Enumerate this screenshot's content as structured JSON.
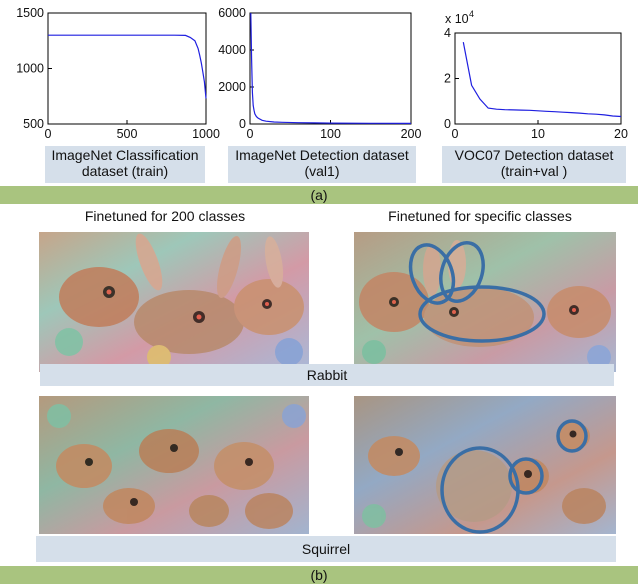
{
  "chart_data": [
    {
      "type": "line",
      "caption": "ImageNet Classification dataset (train)",
      "xlim": [
        0,
        1000
      ],
      "ylim": [
        500,
        1500
      ],
      "xticks": [
        "0",
        "500",
        "1000"
      ],
      "yticks": [
        "500",
        "1000",
        "1500"
      ],
      "x": [
        0,
        50,
        100,
        200,
        300,
        400,
        500,
        600,
        700,
        800,
        870,
        900,
        930,
        950,
        960,
        970,
        980,
        990,
        1000
      ],
      "y": [
        1300,
        1300,
        1300,
        1300,
        1300,
        1300,
        1300,
        1300,
        1300,
        1300,
        1298,
        1280,
        1250,
        1180,
        1120,
        1050,
        970,
        880,
        730
      ],
      "color": "#1f1fe0"
    },
    {
      "type": "line",
      "caption": "ImageNet Detection dataset (val1)",
      "xlim": [
        0,
        200
      ],
      "ylim": [
        0,
        6000
      ],
      "xticks": [
        "0",
        "100",
        "200"
      ],
      "yticks": [
        "0",
        "2000",
        "4000",
        "6000"
      ],
      "x": [
        1,
        2,
        3,
        4,
        5,
        6,
        8,
        10,
        15,
        20,
        30,
        40,
        60,
        80,
        100,
        150,
        200
      ],
      "y": [
        6000,
        3500,
        1700,
        1000,
        750,
        550,
        400,
        320,
        200,
        150,
        110,
        90,
        70,
        60,
        50,
        40,
        30
      ],
      "color": "#1f1fe0"
    },
    {
      "type": "line",
      "caption": "VOC07 Detection dataset (train+val )",
      "xlim": [
        0,
        20
      ],
      "ylim": [
        0,
        40000
      ],
      "xticks": [
        "0",
        "10",
        "20"
      ],
      "yticks": [
        "0",
        "2",
        "4"
      ],
      "y_multiplier": "x 10",
      "y_exponent": "4",
      "x": [
        1,
        2,
        3,
        4,
        5,
        6,
        7,
        8,
        9,
        10,
        11,
        12,
        13,
        14,
        15,
        16,
        17,
        18,
        19,
        20
      ],
      "y": [
        36000,
        17000,
        11000,
        7000,
        6500,
        6300,
        6200,
        6100,
        6000,
        5800,
        5600,
        5400,
        5200,
        5000,
        4800,
        4500,
        4300,
        4000,
        3500,
        3300
      ],
      "color": "#1f1fe0"
    }
  ],
  "section_a_label": "(a)",
  "section_b_label": "(b)",
  "column_titles": {
    "left": "Finetuned for 200 classes",
    "right": "Finetuned for specific classes"
  },
  "rows": [
    {
      "name": "Rabbit"
    },
    {
      "name": "Squirrel"
    }
  ],
  "colors": {
    "caption_bg": "#d5dfea",
    "section_bar": "#a9c47f",
    "ellipse": "#3a6ea5",
    "line": "#1f1fe0"
  }
}
